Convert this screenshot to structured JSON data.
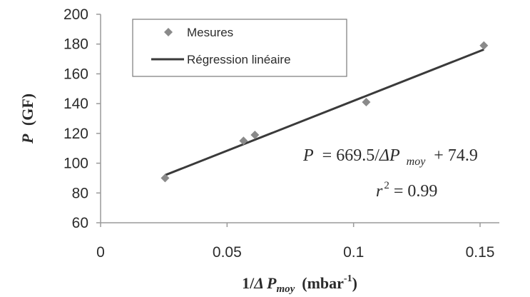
{
  "chart_data": {
    "type": "scatter",
    "xlabel": {
      "prefix": "1/",
      "delta": "Δ",
      "var": "P",
      "sub": "moy",
      "units": "(mbar",
      "exp": "-1",
      "close": ")"
    },
    "ylabel": {
      "var": "P",
      "units": "(GF)"
    },
    "xlim": [
      0,
      0.15
    ],
    "ylim": [
      60,
      200
    ],
    "x_ticks": [
      "0",
      "0.05",
      "0.1",
      "0.15"
    ],
    "y_ticks": [
      "60",
      "80",
      "100",
      "120",
      "140",
      "160",
      "180",
      "200"
    ],
    "series": [
      {
        "name": "Mesures",
        "kind": "points",
        "marker": "diamond",
        "color": "#8a8a8a",
        "points": [
          {
            "x": 0.0255,
            "y": 90
          },
          {
            "x": 0.0565,
            "y": 115
          },
          {
            "x": 0.061,
            "y": 119
          },
          {
            "x": 0.105,
            "y": 141
          },
          {
            "x": 0.1515,
            "y": 179
          }
        ]
      },
      {
        "name": "Régression linéaire",
        "kind": "line",
        "color": "#3a3a3a",
        "slope": 669.5,
        "intercept": 74.9,
        "x_range": [
          0.0255,
          0.1515
        ]
      }
    ],
    "annotation": {
      "eq_lhs": "P",
      "eq_rhs_a": "= 669.5/",
      "eq_delta": "Δ",
      "eq_p": "P",
      "eq_sub": "moy",
      "eq_rhs_b": "+ 74.9",
      "r2_var": "r",
      "r2_exp": "2",
      "r2_rhs": "= 0.99"
    },
    "legend_position": "top-left",
    "grid": false
  }
}
